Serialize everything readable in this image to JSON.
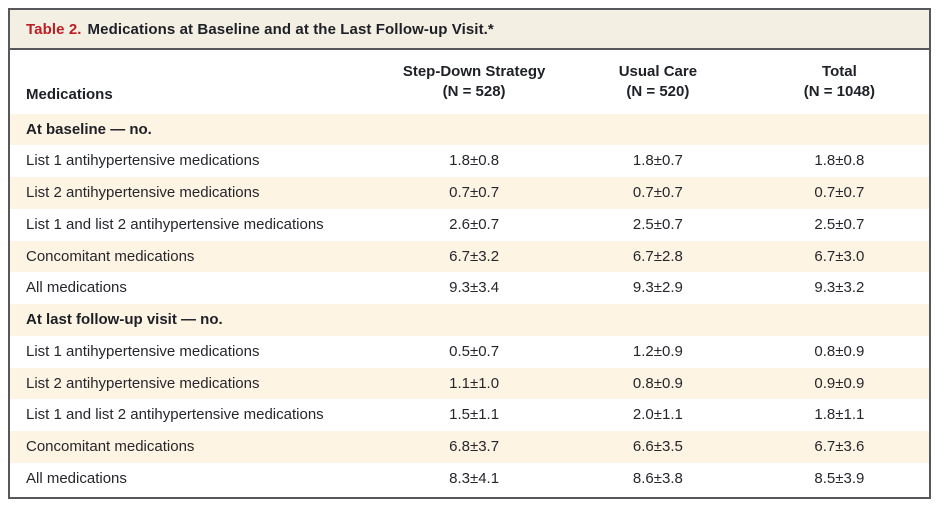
{
  "table": {
    "title_label": "Table 2.",
    "title_text": "Medications at Baseline and at the Last Follow-up Visit.*",
    "row_header": "Medications",
    "columns": [
      {
        "name": "Step-Down Strategy",
        "n": "(N = 528)"
      },
      {
        "name": "Usual Care",
        "n": "(N = 520)"
      },
      {
        "name": "Total",
        "n": "(N = 1048)"
      }
    ],
    "rows": [
      {
        "label": "At baseline — no.",
        "values": [
          "",
          "",
          ""
        ]
      },
      {
        "label": "List 1 antihypertensive medications",
        "values": [
          "1.8±0.8",
          "1.8±0.7",
          "1.8±0.8"
        ]
      },
      {
        "label": "List 2 antihypertensive medications",
        "values": [
          "0.7±0.7",
          "0.7±0.7",
          "0.7±0.7"
        ]
      },
      {
        "label": "List 1 and list 2 antihypertensive medications",
        "values": [
          "2.6±0.7",
          "2.5±0.7",
          "2.5±0.7"
        ]
      },
      {
        "label": "Concomitant medications",
        "values": [
          "6.7±3.2",
          "6.7±2.8",
          "6.7±3.0"
        ]
      },
      {
        "label": "All medications",
        "values": [
          "9.3±3.4",
          "9.3±2.9",
          "9.3±3.2"
        ]
      },
      {
        "label": "At last follow-up visit — no.",
        "values": [
          "",
          "",
          ""
        ]
      },
      {
        "label": "List 1 antihypertensive medications",
        "values": [
          "0.5±0.7",
          "1.2±0.9",
          "0.8±0.9"
        ]
      },
      {
        "label": "List 2 antihypertensive medications",
        "values": [
          "1.1±1.0",
          "0.8±0.9",
          "0.9±0.9"
        ]
      },
      {
        "label": "List 1 and list 2 antihypertensive medications",
        "values": [
          "1.5±1.1",
          "2.0±1.1",
          "1.8±1.1"
        ]
      },
      {
        "label": "Concomitant medications",
        "values": [
          "6.8±3.7",
          "6.6±3.5",
          "6.7±3.6"
        ]
      },
      {
        "label": "All medications",
        "values": [
          "8.3±4.1",
          "8.6±3.8",
          "8.5±3.9"
        ]
      }
    ]
  },
  "colors": {
    "accent_red": "#b92025",
    "title_bar_bg": "#f4efe3",
    "stripe_bg": "#fdf4e3",
    "border": "#57585c",
    "text": "#26262c"
  }
}
